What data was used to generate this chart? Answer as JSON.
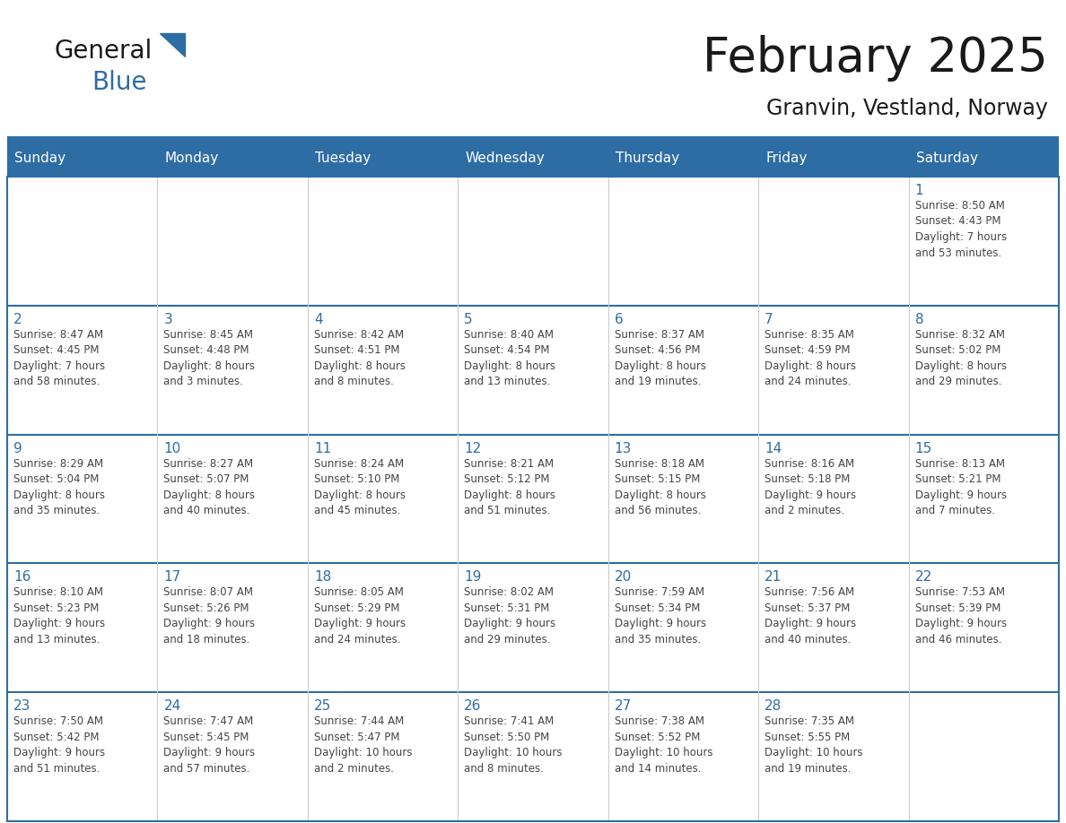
{
  "title": "February 2025",
  "subtitle": "Granvin, Vestland, Norway",
  "days_of_week": [
    "Sunday",
    "Monday",
    "Tuesday",
    "Wednesday",
    "Thursday",
    "Friday",
    "Saturday"
  ],
  "header_bg": "#2E6DA4",
  "header_text": "#FFFFFF",
  "cell_bg": "#FFFFFF",
  "cell_bg_alt": "#F5F5F5",
  "day_num_color": "#2E6DA4",
  "text_color": "#444444",
  "row_line_color": "#2E6DA4",
  "col_line_color": "#CCCCCC",
  "outer_border_color": "#2E6DA4",
  "title_color": "#1A1A1A",
  "subtitle_color": "#1A1A1A",
  "calendar_data": [
    [
      "",
      "",
      "",
      "",
      "",
      "",
      "1\nSunrise: 8:50 AM\nSunset: 4:43 PM\nDaylight: 7 hours\nand 53 minutes."
    ],
    [
      "2\nSunrise: 8:47 AM\nSunset: 4:45 PM\nDaylight: 7 hours\nand 58 minutes.",
      "3\nSunrise: 8:45 AM\nSunset: 4:48 PM\nDaylight: 8 hours\nand 3 minutes.",
      "4\nSunrise: 8:42 AM\nSunset: 4:51 PM\nDaylight: 8 hours\nand 8 minutes.",
      "5\nSunrise: 8:40 AM\nSunset: 4:54 PM\nDaylight: 8 hours\nand 13 minutes.",
      "6\nSunrise: 8:37 AM\nSunset: 4:56 PM\nDaylight: 8 hours\nand 19 minutes.",
      "7\nSunrise: 8:35 AM\nSunset: 4:59 PM\nDaylight: 8 hours\nand 24 minutes.",
      "8\nSunrise: 8:32 AM\nSunset: 5:02 PM\nDaylight: 8 hours\nand 29 minutes."
    ],
    [
      "9\nSunrise: 8:29 AM\nSunset: 5:04 PM\nDaylight: 8 hours\nand 35 minutes.",
      "10\nSunrise: 8:27 AM\nSunset: 5:07 PM\nDaylight: 8 hours\nand 40 minutes.",
      "11\nSunrise: 8:24 AM\nSunset: 5:10 PM\nDaylight: 8 hours\nand 45 minutes.",
      "12\nSunrise: 8:21 AM\nSunset: 5:12 PM\nDaylight: 8 hours\nand 51 minutes.",
      "13\nSunrise: 8:18 AM\nSunset: 5:15 PM\nDaylight: 8 hours\nand 56 minutes.",
      "14\nSunrise: 8:16 AM\nSunset: 5:18 PM\nDaylight: 9 hours\nand 2 minutes.",
      "15\nSunrise: 8:13 AM\nSunset: 5:21 PM\nDaylight: 9 hours\nand 7 minutes."
    ],
    [
      "16\nSunrise: 8:10 AM\nSunset: 5:23 PM\nDaylight: 9 hours\nand 13 minutes.",
      "17\nSunrise: 8:07 AM\nSunset: 5:26 PM\nDaylight: 9 hours\nand 18 minutes.",
      "18\nSunrise: 8:05 AM\nSunset: 5:29 PM\nDaylight: 9 hours\nand 24 minutes.",
      "19\nSunrise: 8:02 AM\nSunset: 5:31 PM\nDaylight: 9 hours\nand 29 minutes.",
      "20\nSunrise: 7:59 AM\nSunset: 5:34 PM\nDaylight: 9 hours\nand 35 minutes.",
      "21\nSunrise: 7:56 AM\nSunset: 5:37 PM\nDaylight: 9 hours\nand 40 minutes.",
      "22\nSunrise: 7:53 AM\nSunset: 5:39 PM\nDaylight: 9 hours\nand 46 minutes."
    ],
    [
      "23\nSunrise: 7:50 AM\nSunset: 5:42 PM\nDaylight: 9 hours\nand 51 minutes.",
      "24\nSunrise: 7:47 AM\nSunset: 5:45 PM\nDaylight: 9 hours\nand 57 minutes.",
      "25\nSunrise: 7:44 AM\nSunset: 5:47 PM\nDaylight: 10 hours\nand 2 minutes.",
      "26\nSunrise: 7:41 AM\nSunset: 5:50 PM\nDaylight: 10 hours\nand 8 minutes.",
      "27\nSunrise: 7:38 AM\nSunset: 5:52 PM\nDaylight: 10 hours\nand 14 minutes.",
      "28\nSunrise: 7:35 AM\nSunset: 5:55 PM\nDaylight: 10 hours\nand 19 minutes.",
      ""
    ]
  ],
  "logo_text_general": "General",
  "logo_text_blue": "Blue",
  "logo_color_general": "#1A1A1A",
  "logo_color_blue": "#2E6DA4",
  "logo_triangle_color": "#2E6DA4"
}
